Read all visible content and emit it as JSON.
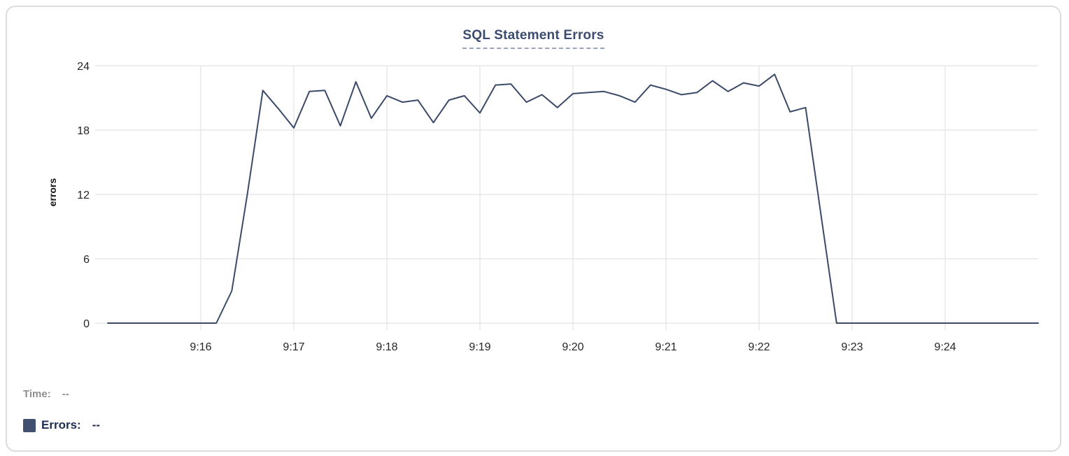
{
  "chart_data": {
    "type": "line",
    "title": "SQL Statement Errors",
    "xlabel": "",
    "ylabel": "errors",
    "ylim": [
      0,
      24
    ],
    "y_ticks": [
      0,
      6,
      12,
      18,
      24
    ],
    "x_ticks": [
      "9:16",
      "9:17",
      "9:18",
      "9:19",
      "9:20",
      "9:21",
      "9:22",
      "9:23",
      "9:24"
    ],
    "x_domain": [
      "9:15:00",
      "9:25:00"
    ],
    "grid": true,
    "colors": {
      "line": "#3b4a68",
      "grid": "#e8e8e8",
      "tick_text": "#262626",
      "title": "#3c4c71",
      "title_underline": "#9aa4c0"
    },
    "series": [
      {
        "name": "Errors",
        "color": "#3b4a68",
        "points": [
          [
            "9:15:00",
            0
          ],
          [
            "9:15:10",
            0
          ],
          [
            "9:15:20",
            0
          ],
          [
            "9:15:30",
            0
          ],
          [
            "9:15:40",
            0
          ],
          [
            "9:15:50",
            0
          ],
          [
            "9:16:00",
            0
          ],
          [
            "9:16:10",
            0
          ],
          [
            "9:16:20",
            3
          ],
          [
            "9:16:30",
            12
          ],
          [
            "9:16:40",
            21.7
          ],
          [
            "9:16:50",
            20
          ],
          [
            "9:17:00",
            18.2
          ],
          [
            "9:17:10",
            21.6
          ],
          [
            "9:17:20",
            21.7
          ],
          [
            "9:17:30",
            18.4
          ],
          [
            "9:17:40",
            22.5
          ],
          [
            "9:17:50",
            19.1
          ],
          [
            "9:18:00",
            21.2
          ],
          [
            "9:18:10",
            20.6
          ],
          [
            "9:18:20",
            20.8
          ],
          [
            "9:18:30",
            18.7
          ],
          [
            "9:18:40",
            20.8
          ],
          [
            "9:18:50",
            21.2
          ],
          [
            "9:19:00",
            19.6
          ],
          [
            "9:19:10",
            22.2
          ],
          [
            "9:19:20",
            22.3
          ],
          [
            "9:19:30",
            20.6
          ],
          [
            "9:19:40",
            21.3
          ],
          [
            "9:19:50",
            20.1
          ],
          [
            "9:20:00",
            21.4
          ],
          [
            "9:20:10",
            21.5
          ],
          [
            "9:20:20",
            21.6
          ],
          [
            "9:20:30",
            21.2
          ],
          [
            "9:20:40",
            20.6
          ],
          [
            "9:20:50",
            22.2
          ],
          [
            "9:21:00",
            21.8
          ],
          [
            "9:21:10",
            21.3
          ],
          [
            "9:21:20",
            21.5
          ],
          [
            "9:21:30",
            22.6
          ],
          [
            "9:21:40",
            21.6
          ],
          [
            "9:21:50",
            22.4
          ],
          [
            "9:22:00",
            22.1
          ],
          [
            "9:22:10",
            23.2
          ],
          [
            "9:22:20",
            19.7
          ],
          [
            "9:22:30",
            20.1
          ],
          [
            "9:22:40",
            10
          ],
          [
            "9:22:50",
            0
          ],
          [
            "9:23:00",
            0
          ],
          [
            "9:23:10",
            0
          ],
          [
            "9:23:20",
            0
          ],
          [
            "9:23:30",
            0
          ],
          [
            "9:23:40",
            0
          ],
          [
            "9:23:50",
            0
          ],
          [
            "9:24:00",
            0
          ],
          [
            "9:24:10",
            0
          ],
          [
            "9:24:20",
            0
          ],
          [
            "9:24:30",
            0
          ],
          [
            "9:24:40",
            0
          ],
          [
            "9:24:50",
            0
          ],
          [
            "9:25:00",
            0
          ]
        ]
      }
    ],
    "legend_position": "bottom-left"
  },
  "tooltip": {
    "time_label": "Time:",
    "time_value": "--",
    "errors_label": "Errors:",
    "errors_value": "--"
  }
}
